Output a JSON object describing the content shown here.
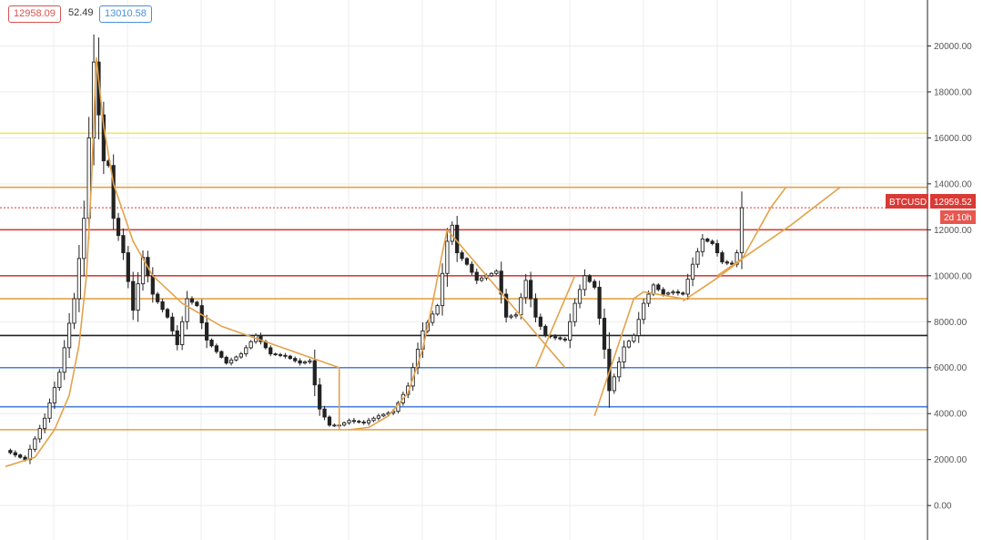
{
  "header": {
    "bid": "12958.09",
    "spread": "52.49",
    "ask": "13010.58"
  },
  "price_tag": {
    "symbol": "BTCUSD",
    "price": "12959.52",
    "countdown": "2d 10h"
  },
  "colors": {
    "bid": "#d9534f",
    "ask": "#4a90d9",
    "tag_bg": "#d93a35",
    "tag_sub_bg": "#e8574f",
    "grid": "#ececec",
    "candle": "#222222"
  },
  "chart_data": {
    "type": "candlestick",
    "symbol": "BTCUSD",
    "last_price": 12959.52,
    "ylim": [
      -1500,
      22000
    ],
    "y_ticks": [
      "0.00",
      "2000.00",
      "4000.00",
      "6000.00",
      "8000.00",
      "10000.00",
      "12000.00",
      "14000.00",
      "16000.00",
      "18000.00",
      "20000.00"
    ],
    "y_tick_values": [
      0,
      2000,
      4000,
      6000,
      8000,
      10000,
      12000,
      14000,
      16000,
      18000,
      20000
    ],
    "grid": true,
    "price_path": [
      [
        0,
        2400
      ],
      [
        4,
        2000
      ],
      [
        8,
        3800
      ],
      [
        11,
        5800
      ],
      [
        14,
        9000
      ],
      [
        16,
        12500
      ],
      [
        17,
        16000
      ],
      [
        18,
        19300
      ],
      [
        19,
        17000
      ],
      [
        20,
        15000
      ],
      [
        21,
        14800
      ],
      [
        22,
        12500
      ],
      [
        24,
        11000
      ],
      [
        26,
        8500
      ],
      [
        28,
        10800
      ],
      [
        30,
        9200
      ],
      [
        33,
        8200
      ],
      [
        35,
        7000
      ],
      [
        37,
        9000
      ],
      [
        39,
        8700
      ],
      [
        41,
        7200
      ],
      [
        43,
        6700
      ],
      [
        45,
        6200
      ],
      [
        48,
        6600
      ],
      [
        51,
        7400
      ],
      [
        54,
        6600
      ],
      [
        57,
        6500
      ],
      [
        60,
        6200
      ],
      [
        62,
        6300
      ],
      [
        64,
        4200
      ],
      [
        66,
        3500
      ],
      [
        68,
        3500
      ],
      [
        70,
        3700
      ],
      [
        73,
        3600
      ],
      [
        76,
        3900
      ],
      [
        79,
        4100
      ],
      [
        82,
        5200
      ],
      [
        85,
        7600
      ],
      [
        88,
        8700
      ],
      [
        90,
        11500
      ],
      [
        91,
        12200
      ],
      [
        92,
        11000
      ],
      [
        94,
        10500
      ],
      [
        96,
        9800
      ],
      [
        98,
        10000
      ],
      [
        100,
        10200
      ],
      [
        102,
        8200
      ],
      [
        104,
        8300
      ],
      [
        106,
        9800
      ],
      [
        108,
        8200
      ],
      [
        110,
        7400
      ],
      [
        112,
        7300
      ],
      [
        114,
        7200
      ],
      [
        116,
        8800
      ],
      [
        118,
        10000
      ],
      [
        120,
        9500
      ],
      [
        122,
        6800
      ],
      [
        123,
        5000
      ],
      [
        124,
        5600
      ],
      [
        126,
        6900
      ],
      [
        128,
        7400
      ],
      [
        130,
        8800
      ],
      [
        132,
        9600
      ],
      [
        134,
        9200
      ],
      [
        136,
        9300
      ],
      [
        138,
        9200
      ],
      [
        140,
        10500
      ],
      [
        142,
        11600
      ],
      [
        144,
        11400
      ],
      [
        146,
        10600
      ],
      [
        148,
        10500
      ],
      [
        149,
        11000
      ],
      [
        150,
        12959.52
      ]
    ],
    "horizontal_levels": [
      {
        "price": 16200,
        "color": "#f2e46b"
      },
      {
        "price": 13850,
        "color": "#e3a24a"
      },
      {
        "price": 12000,
        "color": "#d4433a"
      },
      {
        "price": 10000,
        "color": "#d4433a"
      },
      {
        "price": 9000,
        "color": "#e3a24a"
      },
      {
        "price": 7400,
        "color": "#222222"
      },
      {
        "price": 6000,
        "color": "#4a7fd9"
      },
      {
        "price": 4300,
        "color": "#4a7fd9"
      },
      {
        "price": 3300,
        "color": "#e3a24a"
      }
    ],
    "drawn_lines": [
      {
        "points": [
          [
            0,
            1700
          ],
          [
            6,
            2100
          ],
          [
            10,
            3300
          ],
          [
            13,
            4800
          ],
          [
            15,
            7000
          ],
          [
            16.5,
            10000
          ],
          [
            17.5,
            14000
          ],
          [
            18.5,
            19500
          ]
        ],
        "color": "#e3a24a"
      },
      {
        "points": [
          [
            18.5,
            19500
          ],
          [
            20,
            16500
          ],
          [
            22,
            14000
          ],
          [
            26,
            11500
          ],
          [
            30,
            10000
          ],
          [
            36,
            8800
          ],
          [
            44,
            7800
          ],
          [
            56,
            6900
          ],
          [
            68,
            6000
          ]
        ],
        "color": "#e3a24a"
      },
      {
        "points": [
          [
            68,
            6000
          ],
          [
            68,
            3300
          ]
        ],
        "color": "#e3a24a"
      },
      {
        "points": [
          [
            70,
            3300
          ],
          [
            74,
            3400
          ],
          [
            78,
            3900
          ],
          [
            82,
            4900
          ],
          [
            85,
            6800
          ],
          [
            87,
            8800
          ],
          [
            89,
            11000
          ],
          [
            90,
            12000
          ]
        ],
        "color": "#e3a24a"
      },
      {
        "points": [
          [
            90,
            12000
          ],
          [
            102,
            9000
          ],
          [
            114,
            6000
          ]
        ],
        "color": "#e3a24a"
      },
      {
        "points": [
          [
            108,
            6000
          ],
          [
            116,
            10000
          ]
        ],
        "color": "#e3a24a"
      },
      {
        "points": [
          [
            120,
            3900
          ],
          [
            128,
            9000
          ],
          [
            130,
            9300
          ],
          [
            138,
            9000
          ]
        ],
        "color": "#e3a24a"
      },
      {
        "points": [
          [
            138,
            8900
          ],
          [
            145,
            9900
          ],
          [
            150,
            10700
          ],
          [
            156,
            13000
          ],
          [
            159,
            13850
          ]
        ],
        "color": "#e3a24a"
      },
      {
        "points": [
          [
            145,
            10000
          ],
          [
            160,
            12200
          ],
          [
            170,
            13850
          ]
        ],
        "color": "#e3a24a"
      }
    ]
  }
}
